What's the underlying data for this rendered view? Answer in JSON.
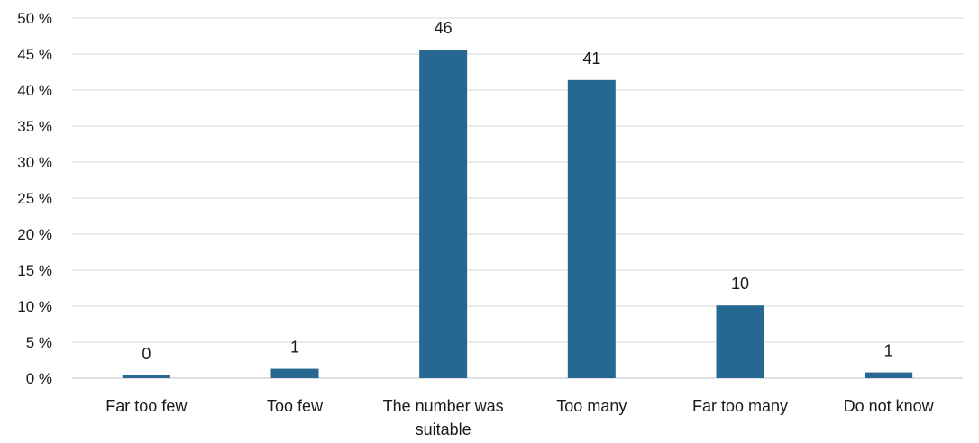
{
  "chart_data": {
    "type": "bar",
    "title": "",
    "xlabel": "",
    "ylabel": "",
    "categories": [
      [
        "Far too few"
      ],
      [
        "Too few"
      ],
      [
        "The number was",
        "suitable"
      ],
      [
        "Too many"
      ],
      [
        "Far too many"
      ],
      [
        "Do not know"
      ]
    ],
    "values": [
      0.4,
      1.3,
      45.6,
      41.4,
      10.1,
      0.8
    ],
    "data_labels": [
      "0",
      "1",
      "46",
      "41",
      "10",
      "1"
    ],
    "ylim": [
      0,
      50
    ],
    "yticks": [
      0,
      5,
      10,
      15,
      20,
      25,
      30,
      35,
      40,
      45,
      50
    ],
    "ytick_labels": [
      "0 %",
      "5 %",
      "10 %",
      "15 %",
      "20 %",
      "25 %",
      "30 %",
      "35 %",
      "40 %",
      "45 %",
      "50 %"
    ],
    "grid": true,
    "legend": "none",
    "bar_color": "#276893",
    "grid_color": "#d9d9d9"
  }
}
